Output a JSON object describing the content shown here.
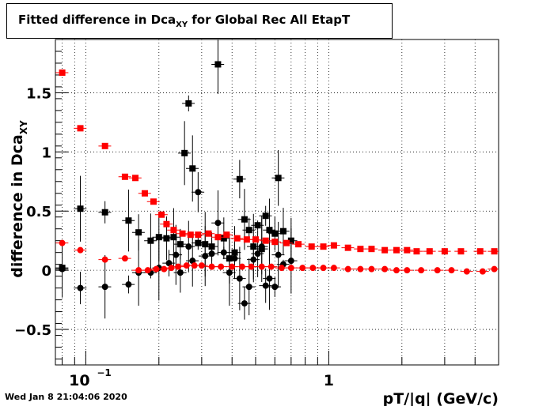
{
  "title": {
    "main": "Fitted difference in Dca",
    "sub": "XY",
    "rest": " for Global Rec All EtapT"
  },
  "footer": "Wed Jan  8 21:04:06 2020",
  "chart_data": {
    "type": "scatter",
    "title": "Fitted difference in Dca_XY for Global Rec All EtapT",
    "xlabel": "pT/|q| (GeV/c)",
    "ylabel": "difference in Dca_XY",
    "x_scale": "log",
    "xlim": [
      0.075,
      5.0
    ],
    "ylim": [
      -0.8,
      1.95
    ],
    "grid": true,
    "x_tick_labels": [
      {
        "value": 0.1,
        "base": "10",
        "exp": "−1"
      },
      {
        "value": 1,
        "base": "1",
        "exp": ""
      }
    ],
    "y_ticks": [
      -0.5,
      0,
      0.5,
      1,
      1.5
    ],
    "y_tick_labels": [
      "−0.5",
      "0",
      "0.5",
      "1",
      "1.5"
    ],
    "colors": {
      "black": "#000000",
      "red": "#ff0000"
    },
    "series": [
      {
        "color": "#000000",
        "marker": "square",
        "points": [
          [
            0.08,
            0.02
          ],
          [
            0.095,
            0.52
          ],
          [
            0.12,
            0.49
          ],
          [
            0.15,
            0.42
          ],
          [
            0.165,
            0.32
          ],
          [
            0.185,
            0.25
          ],
          [
            0.2,
            0.28
          ],
          [
            0.215,
            0.27
          ],
          [
            0.23,
            0.28
          ],
          [
            0.245,
            0.22
          ],
          [
            0.255,
            0.99
          ],
          [
            0.265,
            1.41
          ],
          [
            0.275,
            0.86
          ],
          [
            0.29,
            0.23
          ],
          [
            0.31,
            0.22
          ],
          [
            0.33,
            0.2
          ],
          [
            0.35,
            1.74
          ],
          [
            0.37,
            0.27
          ],
          [
            0.39,
            0.1
          ],
          [
            0.41,
            0.15
          ],
          [
            0.43,
            0.77
          ],
          [
            0.45,
            0.43
          ],
          [
            0.47,
            0.34
          ],
          [
            0.49,
            0.2
          ],
          [
            0.51,
            0.38
          ],
          [
            0.53,
            0.18
          ],
          [
            0.55,
            0.46
          ],
          [
            0.57,
            0.34
          ],
          [
            0.6,
            0.31
          ],
          [
            0.62,
            0.78
          ],
          [
            0.65,
            0.33
          ],
          [
            0.7,
            0.25
          ]
        ]
      },
      {
        "color": "#000000",
        "marker": "circle",
        "points": [
          [
            0.08,
            0.01
          ],
          [
            0.095,
            -0.15
          ],
          [
            0.12,
            -0.14
          ],
          [
            0.15,
            -0.12
          ],
          [
            0.165,
            -0.02
          ],
          [
            0.185,
            -0.02
          ],
          [
            0.2,
            0.02
          ],
          [
            0.22,
            0.06
          ],
          [
            0.235,
            0.13
          ],
          [
            0.245,
            -0.02
          ],
          [
            0.265,
            0.2
          ],
          [
            0.275,
            0.08
          ],
          [
            0.29,
            0.66
          ],
          [
            0.31,
            0.12
          ],
          [
            0.33,
            0.14
          ],
          [
            0.35,
            0.4
          ],
          [
            0.37,
            0.15
          ],
          [
            0.39,
            -0.02
          ],
          [
            0.41,
            0.1
          ],
          [
            0.43,
            -0.07
          ],
          [
            0.45,
            -0.28
          ],
          [
            0.47,
            -0.14
          ],
          [
            0.49,
            0.09
          ],
          [
            0.51,
            0.14
          ],
          [
            0.53,
            0.2
          ],
          [
            0.55,
            -0.13
          ],
          [
            0.57,
            -0.07
          ],
          [
            0.6,
            -0.14
          ],
          [
            0.62,
            0.13
          ],
          [
            0.65,
            0.05
          ],
          [
            0.7,
            0.08
          ]
        ]
      },
      {
        "color": "#ff0000",
        "marker": "square",
        "points": [
          [
            0.08,
            1.67
          ],
          [
            0.095,
            1.2
          ],
          [
            0.12,
            1.05
          ],
          [
            0.145,
            0.79
          ],
          [
            0.16,
            0.78
          ],
          [
            0.175,
            0.65
          ],
          [
            0.19,
            0.58
          ],
          [
            0.205,
            0.47
          ],
          [
            0.215,
            0.39
          ],
          [
            0.23,
            0.34
          ],
          [
            0.25,
            0.31
          ],
          [
            0.27,
            0.3
          ],
          [
            0.29,
            0.3
          ],
          [
            0.32,
            0.31
          ],
          [
            0.35,
            0.28
          ],
          [
            0.38,
            0.3
          ],
          [
            0.42,
            0.27
          ],
          [
            0.46,
            0.26
          ],
          [
            0.5,
            0.26
          ],
          [
            0.55,
            0.25
          ],
          [
            0.6,
            0.24
          ],
          [
            0.67,
            0.23
          ],
          [
            0.75,
            0.22
          ],
          [
            0.85,
            0.2
          ],
          [
            0.95,
            0.2
          ],
          [
            1.05,
            0.21
          ],
          [
            1.2,
            0.19
          ],
          [
            1.35,
            0.18
          ],
          [
            1.5,
            0.18
          ],
          [
            1.7,
            0.17
          ],
          [
            1.9,
            0.17
          ],
          [
            2.1,
            0.17
          ],
          [
            2.3,
            0.16
          ],
          [
            2.6,
            0.16
          ],
          [
            3.0,
            0.16
          ],
          [
            3.5,
            0.16
          ],
          [
            4.2,
            0.16
          ],
          [
            4.8,
            0.16
          ]
        ]
      },
      {
        "color": "#ff0000",
        "marker": "circle",
        "points": [
          [
            0.08,
            0.23
          ],
          [
            0.095,
            0.17
          ],
          [
            0.12,
            0.09
          ],
          [
            0.145,
            0.1
          ],
          [
            0.165,
            0.0
          ],
          [
            0.18,
            0.0
          ],
          [
            0.195,
            0.01
          ],
          [
            0.21,
            0.01
          ],
          [
            0.225,
            0.02
          ],
          [
            0.24,
            0.03
          ],
          [
            0.26,
            0.04
          ],
          [
            0.28,
            0.04
          ],
          [
            0.3,
            0.04
          ],
          [
            0.33,
            0.03
          ],
          [
            0.36,
            0.03
          ],
          [
            0.4,
            0.03
          ],
          [
            0.44,
            0.03
          ],
          [
            0.48,
            0.03
          ],
          [
            0.53,
            0.03
          ],
          [
            0.58,
            0.03
          ],
          [
            0.64,
            0.02
          ],
          [
            0.7,
            0.02
          ],
          [
            0.78,
            0.02
          ],
          [
            0.86,
            0.02
          ],
          [
            0.95,
            0.02
          ],
          [
            1.05,
            0.02
          ],
          [
            1.2,
            0.01
          ],
          [
            1.35,
            0.01
          ],
          [
            1.5,
            0.01
          ],
          [
            1.7,
            0.01
          ],
          [
            1.9,
            0.0
          ],
          [
            2.1,
            0.0
          ],
          [
            2.4,
            0.0
          ],
          [
            2.8,
            0.0
          ],
          [
            3.2,
            0.0
          ],
          [
            3.7,
            -0.01
          ],
          [
            4.3,
            -0.01
          ],
          [
            4.8,
            0.01
          ]
        ]
      }
    ]
  }
}
